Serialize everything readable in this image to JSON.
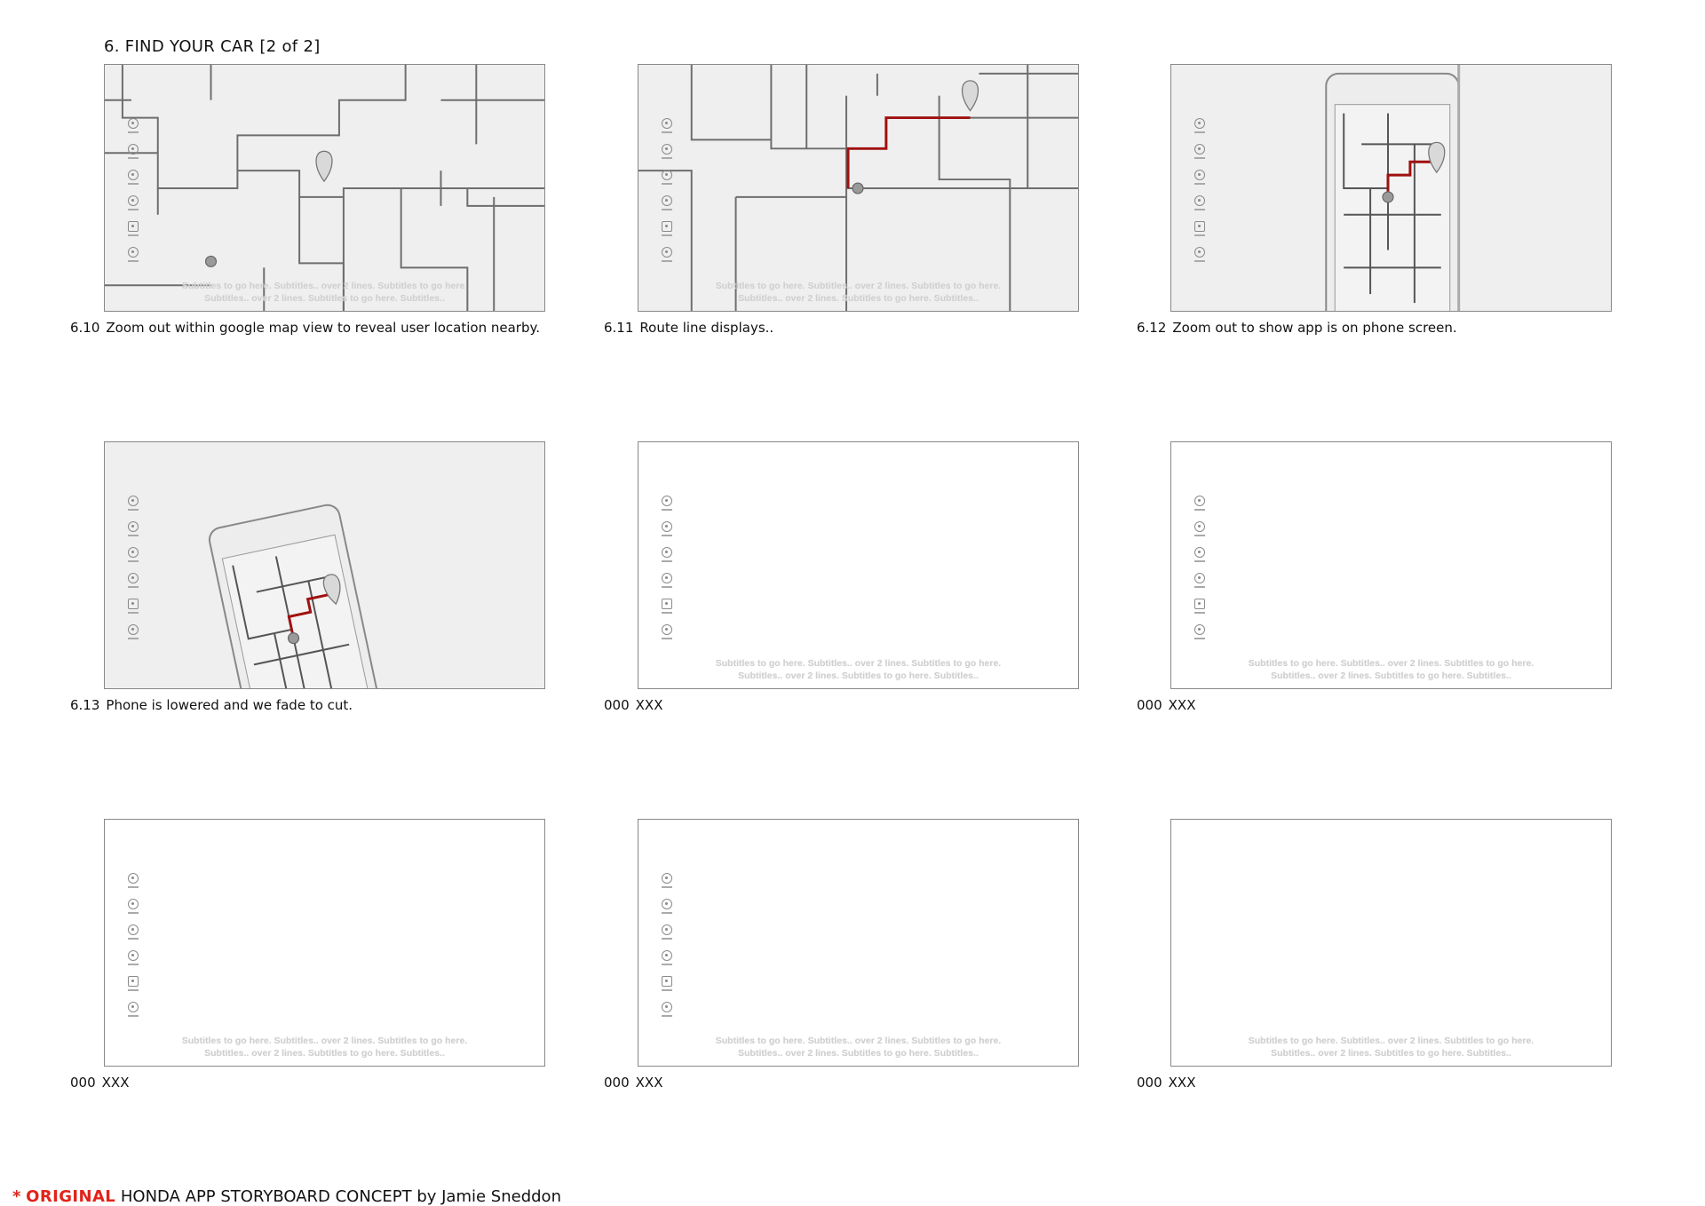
{
  "page": {
    "title": "6. FIND YOUR CAR [2 of 2]"
  },
  "subtitles": {
    "line1": "Subtitles to go here. Subtitles.. over 2 lines. Subtitles to go here.",
    "line2": "Subtitles.. over 2 lines. Subtitles to go here. Subtitles.."
  },
  "colors": {
    "route": "#a01010",
    "brand_red": "#e2231a",
    "map_line": "#6e6e6e",
    "paper": "#efefef"
  },
  "sidebar_icons": [
    "speedometer-icon",
    "steering-wheel-icon",
    "gear-icon",
    "roadside-assistance-icon",
    "document-icon",
    "phone-support-icon"
  ],
  "frames": [
    {
      "id": "6.10",
      "number": "6.10",
      "caption": "Zoom out within google map view to reveal user location nearby.",
      "scene": "map-zoom-out",
      "has_subtitles": true,
      "has_sidebar": true
    },
    {
      "id": "6.11",
      "number": "6.11",
      "caption": "Route line displays..",
      "scene": "map-route",
      "has_subtitles": true,
      "has_sidebar": true
    },
    {
      "id": "6.12",
      "number": "6.12",
      "caption": "Zoom out to show app is   on phone screen.",
      "scene": "phone-screen",
      "has_subtitles": false,
      "has_sidebar": true
    },
    {
      "id": "6.13",
      "number": "6.13",
      "caption": "Phone is lowered and we fade to cut.",
      "scene": "phone-lowered",
      "has_subtitles": false,
      "has_sidebar": true
    },
    {
      "id": "f5",
      "number": "000",
      "caption": "XXX",
      "scene": "blank",
      "has_subtitles": true,
      "has_sidebar": true
    },
    {
      "id": "f6",
      "number": "000",
      "caption": "XXX",
      "scene": "blank",
      "has_subtitles": true,
      "has_sidebar": true
    },
    {
      "id": "f7",
      "number": "000",
      "caption": "XXX",
      "scene": "blank",
      "has_subtitles": true,
      "has_sidebar": true
    },
    {
      "id": "f8",
      "number": "000",
      "caption": "XXX",
      "scene": "blank",
      "has_subtitles": true,
      "has_sidebar": true
    },
    {
      "id": "f9",
      "number": "000",
      "caption": "XXX",
      "scene": "blank",
      "has_subtitles": true,
      "has_sidebar": false
    }
  ],
  "footer": {
    "star": "*",
    "original": "ORIGINAL",
    "rest": "HONDA APP STORYBOARD CONCEPT by Jamie Sneddon"
  }
}
